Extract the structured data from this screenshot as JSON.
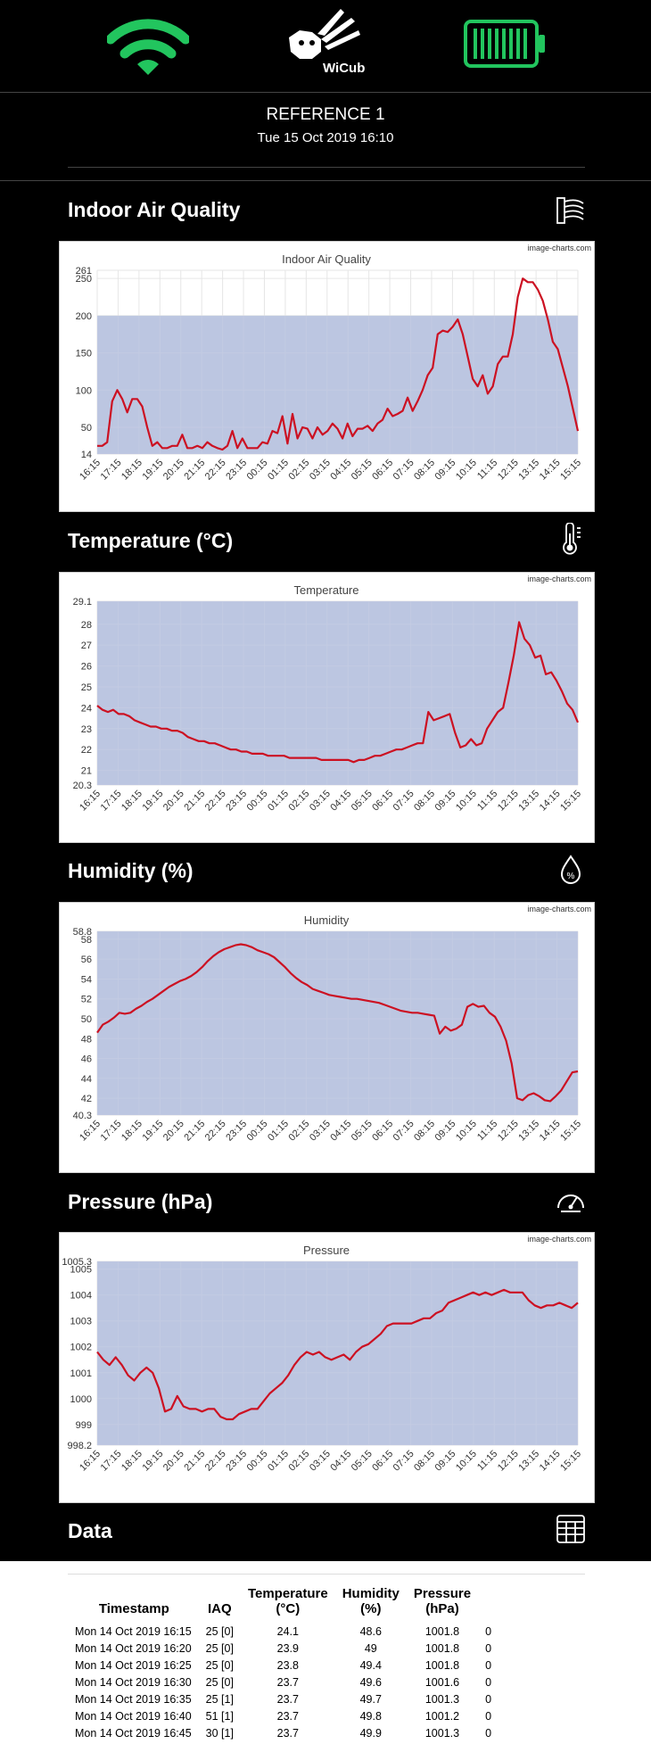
{
  "header": {
    "logo_text": "WiCub",
    "reference": "REFERENCE 1",
    "datetime": "Tue 15 Oct 2019 16:10"
  },
  "colors": {
    "accent_green": "#22c55e",
    "line_red": "#cc1122",
    "plot_fill": "#bcc6e1",
    "background": "#000000"
  },
  "sections": {
    "iaq": {
      "title": "Indoor Air Quality",
      "icon": "air-quality-icon"
    },
    "temperature": {
      "title": "Temperature (°C)",
      "icon": "thermometer-icon"
    },
    "humidity": {
      "title": "Humidity (%)",
      "icon": "droplet-icon"
    },
    "pressure": {
      "title": "Pressure (hPa)",
      "icon": "gauge-icon"
    },
    "data": {
      "title": "Data",
      "icon": "table-icon"
    }
  },
  "chart_data": [
    {
      "type": "line",
      "title": "Indoor Air Quality",
      "watermark": "image-charts.com",
      "xlabel": "",
      "ylabel": "",
      "x_ticks": [
        "16:15",
        "17:15",
        "18:15",
        "19:15",
        "20:15",
        "21:15",
        "22:15",
        "23:15",
        "00:15",
        "01:15",
        "02:15",
        "03:15",
        "04:15",
        "05:15",
        "06:15",
        "07:15",
        "08:15",
        "09:15",
        "10:15",
        "11:15",
        "12:15",
        "13:15",
        "14:15",
        "15:15"
      ],
      "y_ticks": [
        14,
        50,
        100,
        150,
        200,
        250,
        261
      ],
      "ylim": [
        14,
        261
      ],
      "band_to": 200,
      "values": [
        25,
        25,
        30,
        85,
        100,
        88,
        70,
        88,
        88,
        78,
        50,
        25,
        30,
        22,
        22,
        25,
        25,
        40,
        22,
        22,
        25,
        22,
        30,
        25,
        22,
        20,
        25,
        45,
        22,
        35,
        22,
        22,
        22,
        30,
        28,
        45,
        42,
        65,
        28,
        68,
        35,
        50,
        48,
        35,
        50,
        40,
        45,
        55,
        48,
        35,
        55,
        38,
        48,
        48,
        52,
        45,
        55,
        60,
        75,
        65,
        68,
        72,
        90,
        72,
        85,
        100,
        120,
        130,
        175,
        180,
        178,
        185,
        195,
        175,
        145,
        115,
        105,
        120,
        95,
        105,
        135,
        145,
        145,
        175,
        225,
        250,
        245,
        245,
        235,
        220,
        195,
        165,
        155,
        130,
        105,
        75,
        45
      ]
    },
    {
      "type": "line",
      "title": "Temperature",
      "watermark": "image-charts.com",
      "xlabel": "",
      "ylabel": "",
      "x_ticks": [
        "16:15",
        "17:15",
        "18:15",
        "19:15",
        "20:15",
        "21:15",
        "22:15",
        "23:15",
        "00:15",
        "01:15",
        "02:15",
        "03:15",
        "04:15",
        "05:15",
        "06:15",
        "07:15",
        "08:15",
        "09:15",
        "10:15",
        "11:15",
        "12:15",
        "13:15",
        "14:15",
        "15:15"
      ],
      "y_ticks": [
        20.3,
        21,
        22,
        23,
        24,
        25,
        26,
        27,
        28,
        29.1
      ],
      "ylim": [
        20.3,
        29.1
      ],
      "values": [
        24.1,
        23.9,
        23.8,
        23.9,
        23.7,
        23.7,
        23.6,
        23.4,
        23.3,
        23.2,
        23.1,
        23.1,
        23.0,
        23.0,
        22.9,
        22.9,
        22.8,
        22.6,
        22.5,
        22.4,
        22.4,
        22.3,
        22.3,
        22.2,
        22.1,
        22.0,
        22.0,
        21.9,
        21.9,
        21.8,
        21.8,
        21.8,
        21.7,
        21.7,
        21.7,
        21.7,
        21.6,
        21.6,
        21.6,
        21.6,
        21.6,
        21.6,
        21.5,
        21.5,
        21.5,
        21.5,
        21.5,
        21.5,
        21.4,
        21.5,
        21.5,
        21.6,
        21.7,
        21.7,
        21.8,
        21.9,
        22.0,
        22.0,
        22.1,
        22.2,
        22.3,
        22.3,
        23.8,
        23.4,
        23.5,
        23.6,
        23.7,
        22.8,
        22.1,
        22.2,
        22.5,
        22.2,
        22.3,
        23.0,
        23.4,
        23.8,
        24.0,
        25.2,
        26.5,
        28.1,
        27.3,
        27.0,
        26.4,
        26.5,
        25.6,
        25.7,
        25.3,
        24.8,
        24.2,
        23.9,
        23.3
      ]
    },
    {
      "type": "line",
      "title": "Humidity",
      "watermark": "image-charts.com",
      "xlabel": "",
      "ylabel": "",
      "x_ticks": [
        "16:15",
        "17:15",
        "18:15",
        "19:15",
        "20:15",
        "21:15",
        "22:15",
        "23:15",
        "00:15",
        "01:15",
        "02:15",
        "03:15",
        "04:15",
        "05:15",
        "06:15",
        "07:15",
        "08:15",
        "09:15",
        "10:15",
        "11:15",
        "12:15",
        "13:15",
        "14:15",
        "15:15"
      ],
      "y_ticks": [
        40.3,
        42,
        44,
        46,
        48,
        50,
        52,
        54,
        56,
        58,
        58.8
      ],
      "ylim": [
        40.3,
        58.8
      ],
      "values": [
        48.6,
        49.4,
        49.7,
        50.1,
        50.6,
        50.5,
        50.6,
        51.0,
        51.3,
        51.7,
        52.0,
        52.4,
        52.8,
        53.2,
        53.5,
        53.8,
        54.0,
        54.3,
        54.7,
        55.2,
        55.8,
        56.3,
        56.7,
        57.0,
        57.2,
        57.4,
        57.5,
        57.4,
        57.2,
        56.9,
        56.7,
        56.5,
        56.2,
        55.7,
        55.2,
        54.6,
        54.1,
        53.7,
        53.4,
        53.0,
        52.8,
        52.6,
        52.4,
        52.3,
        52.2,
        52.1,
        52.0,
        52.0,
        51.9,
        51.8,
        51.7,
        51.6,
        51.4,
        51.2,
        51.0,
        50.8,
        50.7,
        50.6,
        50.6,
        50.5,
        50.4,
        50.3,
        48.5,
        49.2,
        48.8,
        49.0,
        49.4,
        51.2,
        51.5,
        51.2,
        51.3,
        50.6,
        50.2,
        49.2,
        47.8,
        45.5,
        42.0,
        41.8,
        42.3,
        42.5,
        42.2,
        41.8,
        41.7,
        42.2,
        42.8,
        43.7,
        44.6,
        44.7
      ]
    },
    {
      "type": "line",
      "title": "Pressure",
      "watermark": "image-charts.com",
      "xlabel": "",
      "ylabel": "",
      "x_ticks": [
        "16:15",
        "17:15",
        "18:15",
        "19:15",
        "20:15",
        "21:15",
        "22:15",
        "23:15",
        "00:15",
        "01:15",
        "02:15",
        "03:15",
        "04:15",
        "05:15",
        "06:15",
        "07:15",
        "08:15",
        "09:15",
        "10:15",
        "11:15",
        "12:15",
        "13:15",
        "14:15",
        "15:15"
      ],
      "y_ticks": [
        998.2,
        999,
        1000,
        1001,
        1002,
        1003,
        1004,
        1005,
        1005.3
      ],
      "ylim": [
        998.2,
        1005.3
      ],
      "values": [
        1001.8,
        1001.5,
        1001.3,
        1001.6,
        1001.3,
        1000.9,
        1000.7,
        1001.0,
        1001.2,
        1001.0,
        1000.4,
        999.5,
        999.6,
        1000.1,
        999.7,
        999.6,
        999.6,
        999.5,
        999.6,
        999.6,
        999.3,
        999.2,
        999.2,
        999.4,
        999.5,
        999.6,
        999.6,
        999.9,
        1000.2,
        1000.4,
        1000.6,
        1000.9,
        1001.3,
        1001.6,
        1001.8,
        1001.7,
        1001.8,
        1001.6,
        1001.5,
        1001.6,
        1001.7,
        1001.5,
        1001.8,
        1002.0,
        1002.1,
        1002.3,
        1002.5,
        1002.8,
        1002.9,
        1002.9,
        1002.9,
        1002.9,
        1003.0,
        1003.1,
        1003.1,
        1003.3,
        1003.4,
        1003.7,
        1003.8,
        1003.9,
        1004.0,
        1004.1,
        1004.0,
        1004.1,
        1004.0,
        1004.1,
        1004.2,
        1004.1,
        1004.1,
        1004.1,
        1003.8,
        1003.6,
        1003.5,
        1003.6,
        1003.6,
        1003.7,
        1003.6,
        1003.5,
        1003.7
      ]
    }
  ],
  "table": {
    "headers": [
      [
        "Timestamp"
      ],
      [
        "IAQ"
      ],
      [
        "Temperature",
        "(°C)"
      ],
      [
        "Humidity",
        "(%)"
      ],
      [
        "Pressure",
        "(hPa)"
      ],
      [
        ""
      ]
    ],
    "rows": [
      [
        "Mon 14 Oct 2019 16:15",
        "25 [0]",
        "24.1",
        "48.6",
        "1001.8",
        "0"
      ],
      [
        "Mon 14 Oct 2019 16:20",
        "25 [0]",
        "23.9",
        "49",
        "1001.8",
        "0"
      ],
      [
        "Mon 14 Oct 2019 16:25",
        "25 [0]",
        "23.8",
        "49.4",
        "1001.8",
        "0"
      ],
      [
        "Mon 14 Oct 2019 16:30",
        "25 [0]",
        "23.7",
        "49.6",
        "1001.6",
        "0"
      ],
      [
        "Mon 14 Oct 2019 16:35",
        "25 [1]",
        "23.7",
        "49.7",
        "1001.3",
        "0"
      ],
      [
        "Mon 14 Oct 2019 16:40",
        "51 [1]",
        "23.7",
        "49.8",
        "1001.2",
        "0"
      ],
      [
        "Mon 14 Oct 2019 16:45",
        "30 [1]",
        "23.7",
        "49.9",
        "1001.3",
        "0"
      ]
    ]
  }
}
